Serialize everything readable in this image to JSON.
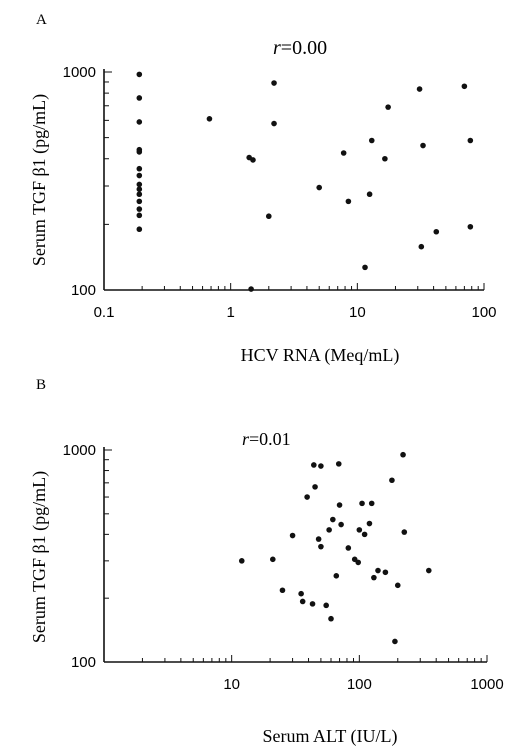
{
  "chart_data": [
    {
      "panel_label": "A",
      "type": "scatter",
      "annotation": "r=0.00",
      "annotation_italic": "r",
      "annotation_rest": "=0.00",
      "xlabel": "HCV RNA (Meq/mL)",
      "ylabel": "Serum TGF β1 (pg/mL)",
      "xscale": "log",
      "yscale": "log",
      "xlim": [
        0.1,
        100
      ],
      "ylim": [
        100,
        1000
      ],
      "xticks": [
        {
          "value": 0.1,
          "label": "0.1"
        },
        {
          "value": 1,
          "label": "1"
        },
        {
          "value": 10,
          "label": "10"
        },
        {
          "value": 100,
          "label": "100"
        }
      ],
      "yticks": [
        {
          "value": 100,
          "label": "100"
        },
        {
          "value": 1000,
          "label": "1000"
        }
      ],
      "grid": false,
      "series": [
        {
          "color": "#111111",
          "points": [
            [
              0.19,
              975
            ],
            [
              0.19,
              760
            ],
            [
              0.19,
              590
            ],
            [
              0.19,
              440
            ],
            [
              0.19,
              430
            ],
            [
              0.19,
              360
            ],
            [
              0.19,
              335
            ],
            [
              0.19,
              305
            ],
            [
              0.19,
              290
            ],
            [
              0.19,
              275
            ],
            [
              0.19,
              255
            ],
            [
              0.19,
              235
            ],
            [
              0.19,
              220
            ],
            [
              0.19,
              190
            ],
            [
              0.68,
              610
            ],
            [
              1.4,
              405
            ],
            [
              1.5,
              395
            ],
            [
              1.45,
              101
            ],
            [
              2.0,
              218
            ],
            [
              2.2,
              890
            ],
            [
              2.2,
              580
            ],
            [
              5.0,
              295
            ],
            [
              7.8,
              425
            ],
            [
              8.5,
              255
            ],
            [
              11.5,
              127
            ],
            [
              12.5,
              275
            ],
            [
              13.0,
              485
            ],
            [
              16.5,
              400
            ],
            [
              17.5,
              690
            ],
            [
              31.0,
              835
            ],
            [
              33.0,
              460
            ],
            [
              32.0,
              158
            ],
            [
              42.0,
              185
            ],
            [
              70.0,
              860
            ],
            [
              78.0,
              485
            ],
            [
              78.0,
              195
            ]
          ]
        }
      ]
    },
    {
      "panel_label": "B",
      "type": "scatter",
      "annotation": "r=0.01",
      "annotation_italic": "r",
      "annotation_rest": "=0.01",
      "xlabel": "Serum ALT (IU/L)",
      "ylabel": "Serum TGF β1 (pg/mL)",
      "xscale": "log",
      "yscale": "log",
      "xlim": [
        1,
        1000
      ],
      "ylim": [
        100,
        1000
      ],
      "xticks": [
        {
          "value": 10,
          "label": "10"
        },
        {
          "value": 100,
          "label": "100"
        },
        {
          "value": 1000,
          "label": "1000"
        }
      ],
      "yticks": [
        {
          "value": 100,
          "label": "100"
        },
        {
          "value": 1000,
          "label": "1000"
        }
      ],
      "grid": false,
      "series": [
        {
          "color": "#111111",
          "points": [
            [
              12,
              300
            ],
            [
              21,
              305
            ],
            [
              25,
              218
            ],
            [
              30,
              395
            ],
            [
              35,
              210
            ],
            [
              36,
              193
            ],
            [
              39,
              600
            ],
            [
              43,
              188
            ],
            [
              44,
              850
            ],
            [
              45,
              670
            ],
            [
              48,
              380
            ],
            [
              50,
              840
            ],
            [
              50,
              350
            ],
            [
              55,
              185
            ],
            [
              58,
              420
            ],
            [
              60,
              160
            ],
            [
              62,
              470
            ],
            [
              66,
              255
            ],
            [
              69,
              860
            ],
            [
              70,
              550
            ],
            [
              72,
              445
            ],
            [
              82,
              345
            ],
            [
              92,
              305
            ],
            [
              98,
              295
            ],
            [
              100,
              420
            ],
            [
              105,
              560
            ],
            [
              110,
              400
            ],
            [
              120,
              450
            ],
            [
              125,
              560
            ],
            [
              130,
              250
            ],
            [
              140,
              270
            ],
            [
              160,
              265
            ],
            [
              180,
              720
            ],
            [
              190,
              125
            ],
            [
              200,
              230
            ],
            [
              220,
              950
            ],
            [
              225,
              410
            ],
            [
              350,
              270
            ]
          ]
        }
      ]
    }
  ]
}
